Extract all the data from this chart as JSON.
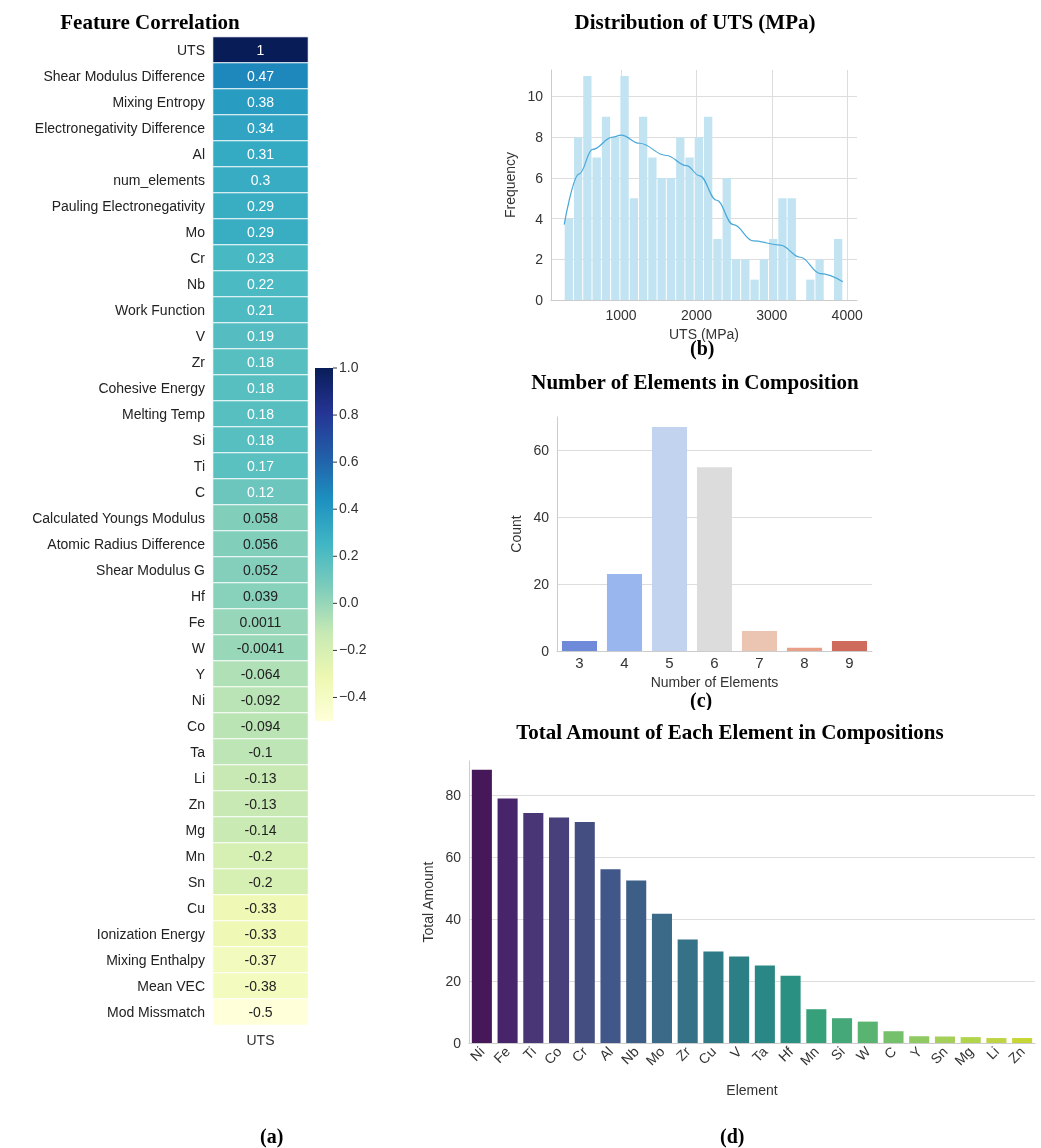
{
  "chart_data": [
    {
      "type": "heatmap",
      "title": "Feature Correlation",
      "categories": [
        "UTS"
      ],
      "y_categories": [
        "UTS",
        "Shear Modulus Difference",
        "Mixing Entropy",
        "Electronegativity Difference",
        "Al",
        "num_elements",
        "Pauling Electronegativity",
        "Mo",
        "Cr",
        "Nb",
        "Work Function",
        "V",
        "Zr",
        "Cohesive Energy",
        "Melting Temp",
        "Si",
        "Ti",
        "C",
        "Calculated Youngs Modulus",
        "Atomic Radius Difference",
        "Shear Modulus G",
        "Hf",
        "Fe",
        "W",
        "Y",
        "Ni",
        "Co",
        "Ta",
        "Li",
        "Zn",
        "Mg",
        "Mn",
        "Sn",
        "Cu",
        "Ionization Energy",
        "Mixing Enthalpy",
        "Mean VEC",
        "Mod Missmatch"
      ],
      "cells": [
        [
          1
        ],
        [
          0.47
        ],
        [
          0.38
        ],
        [
          0.34
        ],
        [
          0.31
        ],
        [
          0.3
        ],
        [
          0.29
        ],
        [
          0.29
        ],
        [
          0.23
        ],
        [
          0.22
        ],
        [
          0.21
        ],
        [
          0.19
        ],
        [
          0.18
        ],
        [
          0.18
        ],
        [
          0.18
        ],
        [
          0.18
        ],
        [
          0.17
        ],
        [
          0.12
        ],
        [
          0.058
        ],
        [
          0.056
        ],
        [
          0.052
        ],
        [
          0.039
        ],
        [
          0.0011
        ],
        [
          -0.0041
        ],
        [
          -0.064
        ],
        [
          -0.092
        ],
        [
          -0.094
        ],
        [
          -0.1
        ],
        [
          -0.13
        ],
        [
          -0.13
        ],
        [
          -0.14
        ],
        [
          -0.2
        ],
        [
          -0.2
        ],
        [
          -0.33
        ],
        [
          -0.33
        ],
        [
          -0.37
        ],
        [
          -0.38
        ],
        [
          -0.5
        ]
      ],
      "clim": [
        -0.5,
        1.0
      ],
      "cticks": [
        {
          "value": -0.4,
          "label": "−0.4"
        },
        {
          "value": -0.2,
          "label": "−0.2"
        },
        {
          "value": 0,
          "label": "0.0"
        },
        {
          "value": 0.2,
          "label": "0.2"
        },
        {
          "value": 0.4,
          "label": "0.4"
        },
        {
          "value": 0.6,
          "label": "0.6"
        },
        {
          "value": 0.8,
          "label": "0.8"
        },
        {
          "value": 1,
          "label": "1.0"
        }
      ],
      "data_labels": true,
      "annotations": [
        "(a)"
      ]
    },
    {
      "type": "histogram",
      "title": "Distribution of UTS (MPa)",
      "xlabel": "UTS (MPa)",
      "ylabel": "Frequency",
      "bins": [
        245,
        368,
        491,
        614,
        738,
        861,
        984,
        1108,
        1231,
        1354,
        1477,
        1600,
        1724,
        1847,
        1970,
        2093,
        2217,
        2340,
        2463,
        2586,
        2710,
        2833,
        2956,
        3079,
        3202,
        3326,
        3449,
        3572,
        3695,
        3819,
        3942
      ],
      "values": [
        4,
        8,
        11,
        7,
        9,
        8,
        11,
        5,
        9,
        7,
        6,
        6,
        8,
        7,
        8,
        9,
        3,
        6,
        2,
        2,
        1,
        2,
        3,
        5,
        5,
        0,
        1,
        2,
        0,
        3
      ],
      "color": "#c2e3f2",
      "series": [
        {
          "type": "line",
          "color": "#4aa8d8",
          "x": [
            245,
            444,
            622,
            889,
            1000,
            1244,
            1600,
            1867,
            2044,
            2267,
            2489,
            2756,
            3111,
            3378,
            3644,
            3942
          ],
          "values": [
            3.7,
            6.2,
            7.4,
            8.0,
            8.1,
            7.7,
            7.1,
            6.6,
            6.1,
            4.9,
            3.7,
            2.9,
            2.7,
            2.1,
            1.3,
            0.9
          ]
        }
      ],
      "marker": "none",
      "xlim": [
        70,
        4130
      ],
      "xticks": [
        1000,
        2000,
        3000,
        4000
      ],
      "ylim": [
        0,
        11.3
      ],
      "yticks": [
        0,
        2,
        4,
        6,
        8,
        10
      ],
      "grid": true,
      "annotations": [
        "(b)"
      ]
    },
    {
      "type": "bar",
      "title": "Number of Elements in Composition",
      "xlabel": "Number of Elements",
      "ylabel": "Count",
      "categories": [
        "3",
        "4",
        "5",
        "6",
        "7",
        "8",
        "9"
      ],
      "values": [
        3,
        23,
        67,
        55,
        6,
        1,
        3
      ],
      "colors": [
        "#6f8ad8",
        "#9ab6ef",
        "#c2d3f0",
        "#dcdcdc",
        "#ecc4b2",
        "#e8a088",
        "#cf6b5c"
      ],
      "ylim": [
        0,
        70
      ],
      "yticks": [
        0,
        20,
        40,
        60
      ],
      "grid": "y",
      "annotations": [
        "(c)"
      ]
    },
    {
      "type": "bar",
      "title": "Total Amount of Each Element in Compositions",
      "xlabel": "Element",
      "ylabel": "Total Amount",
      "categories": [
        "Ni",
        "Fe",
        "Ti",
        "Co",
        "Cr",
        "Al",
        "Nb",
        "Mo",
        "Zr",
        "Cu",
        "V",
        "Ta",
        "Hf",
        "Mn",
        "Si",
        "W",
        "C",
        "Y",
        "Sn",
        "Mg",
        "Li",
        "Zn"
      ],
      "values": [
        88.2,
        78.9,
        74.2,
        72.8,
        71.3,
        56.1,
        52.4,
        41.7,
        33.4,
        29.5,
        27.9,
        25.0,
        21.7,
        10.9,
        8.0,
        6.9,
        3.8,
        2.2,
        2.1,
        1.9,
        1.6,
        1.6
      ],
      "colors": [
        "#46185a",
        "#48256a",
        "#483676",
        "#47407a",
        "#454e81",
        "#41578a",
        "#3d5f87",
        "#3a6a87",
        "#357187",
        "#2f7a87",
        "#2b7f85",
        "#298885",
        "#2a9081",
        "#35a07a",
        "#44a878",
        "#58b470",
        "#74c06b",
        "#8ec963",
        "#a4d05a",
        "#b0d44c",
        "#bed445",
        "#c6d634"
      ],
      "ylim": [
        0,
        91
      ],
      "yticks": [
        0,
        20,
        40,
        60,
        80
      ],
      "grid": "y",
      "annotations": [
        "(d)"
      ]
    }
  ]
}
